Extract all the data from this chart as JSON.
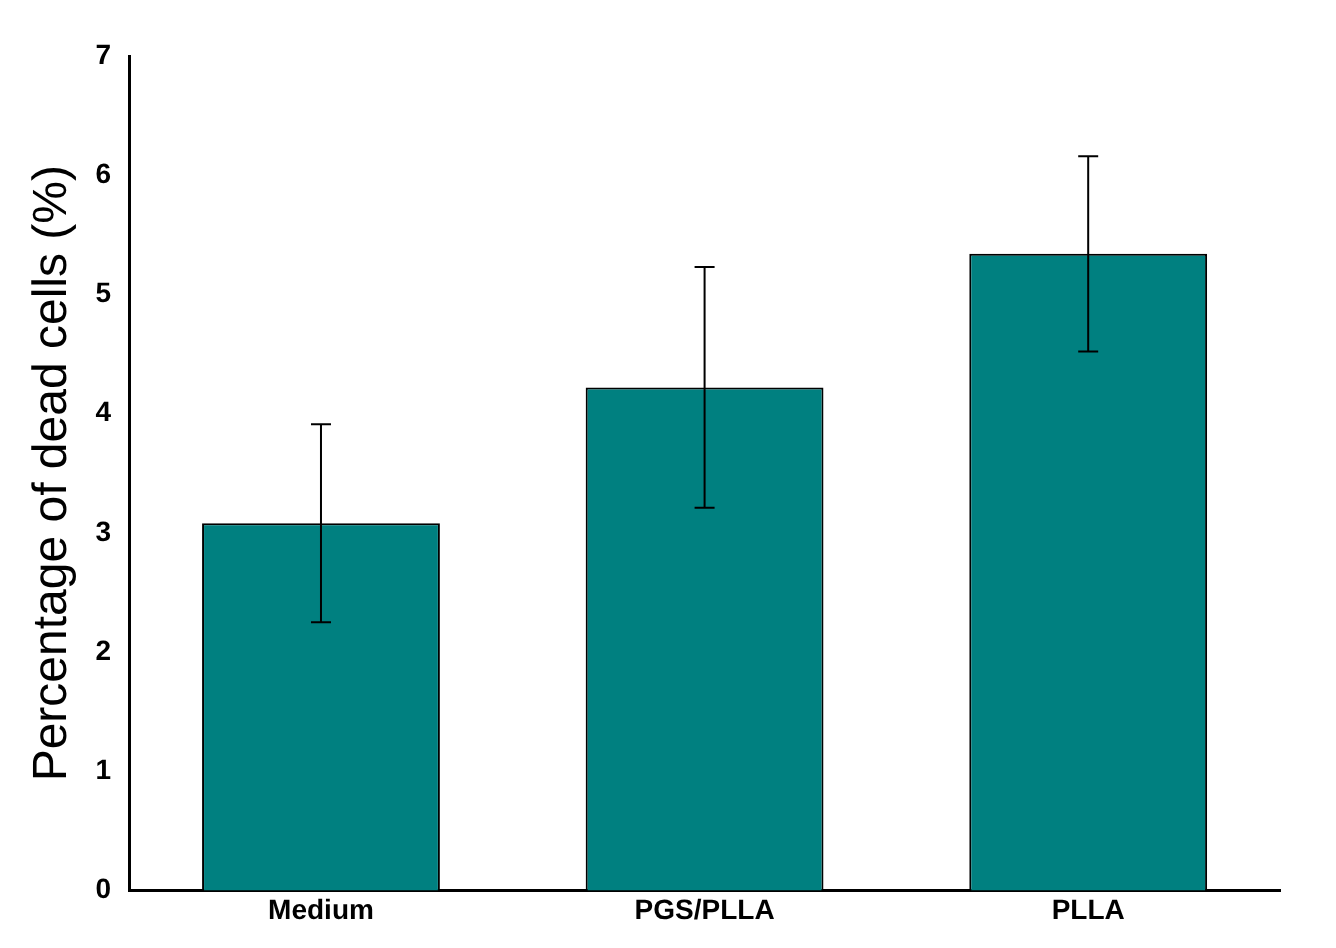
{
  "chart_data": {
    "type": "bar",
    "ylabel": "Percentage of dead cells (%)",
    "categories": [
      "Medium",
      "PGS/PLLA",
      "PLLA"
    ],
    "values": [
      3.08,
      4.22,
      5.34
    ],
    "errors": [
      0.83,
      1.01,
      0.82
    ],
    "color": "#008080",
    "ylim": [
      0,
      7
    ],
    "yticks": [
      0,
      1,
      2,
      3,
      4,
      5,
      6,
      7
    ],
    "grid": false,
    "legend": false
  }
}
